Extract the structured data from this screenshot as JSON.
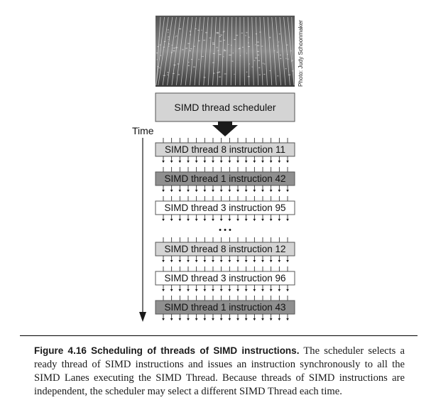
{
  "figure": {
    "photo_credit": "Photo: Judy Schoonmaker",
    "scheduler_label": "SIMD thread scheduler",
    "time_label": "Time",
    "ellipsis": "• • •",
    "instructions": [
      {
        "label": "SIMD thread 8 instruction 11",
        "fill": "#d4d4d4"
      },
      {
        "label": "SIMD thread 1 instruction 42",
        "fill": "#8f8f8f"
      },
      {
        "label": "SIMD thread 3 instruction 95",
        "fill": "#ffffff"
      },
      {
        "label": "SIMD thread 8 instruction 12",
        "fill": "#d4d4d4"
      },
      {
        "label": "SIMD thread 3 instruction 96",
        "fill": "#ffffff"
      },
      {
        "label": "SIMD thread 1 instruction 43",
        "fill": "#8f8f8f"
      }
    ]
  },
  "caption": {
    "title": "Figure 4.16 Scheduling of threads of SIMD instructions.",
    "body": " The scheduler selects a ready thread of SIMD instructions and issues an instruction synchronously to all the SIMD Lanes executing the SIMD Thread. Because threads of SIMD instructions are independent, the scheduler may select a different SIMD Thread each time."
  }
}
